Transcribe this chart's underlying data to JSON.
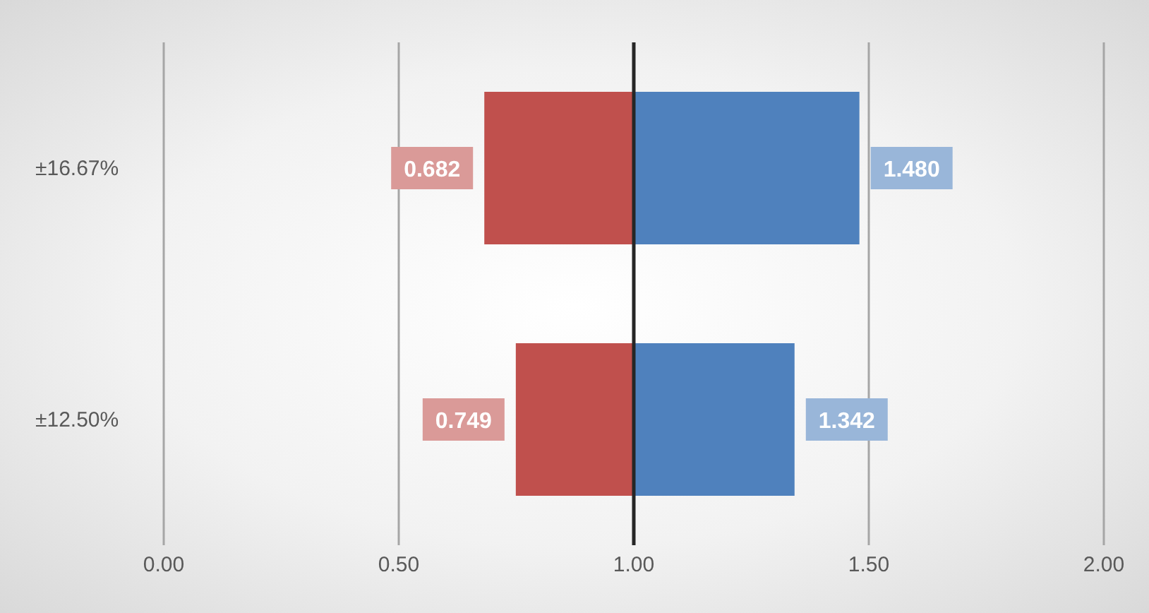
{
  "chart_data": {
    "type": "bar",
    "orientation": "horizontal",
    "categories": [
      "±16.67%",
      "±12.50%"
    ],
    "series": [
      {
        "color": "#c0504d",
        "base": [
          0.682,
          0.749
        ],
        "values": [
          0.318,
          0.251
        ]
      },
      {
        "color": "#4f81bd",
        "base": [
          1,
          1
        ],
        "values": [
          0.48,
          0.342
        ]
      }
    ],
    "annotations": [
      {
        "text": "0.682",
        "x": 0.682,
        "y": "±16.67%"
      },
      {
        "text": "0.749",
        "x": 0.749,
        "y": "±12.50%"
      },
      {
        "text": "1.480",
        "x": 1.48,
        "y": "±16.67%"
      },
      {
        "text": "1.342",
        "x": 1.342,
        "y": "±12.50%"
      }
    ],
    "xlim": [
      0,
      2
    ],
    "xticks": [
      {
        "value": 0,
        "label": "0.00"
      },
      {
        "value": 0.5,
        "label": "0.50"
      },
      {
        "value": 1,
        "label": "1.00"
      },
      {
        "value": 1.5,
        "label": "1.50"
      },
      {
        "value": 2,
        "label": "2.00"
      }
    ],
    "grid": "x",
    "legend": false,
    "ref_lines": [
      {
        "axis": "x",
        "value": 1,
        "color": "#262626"
      }
    ]
  }
}
